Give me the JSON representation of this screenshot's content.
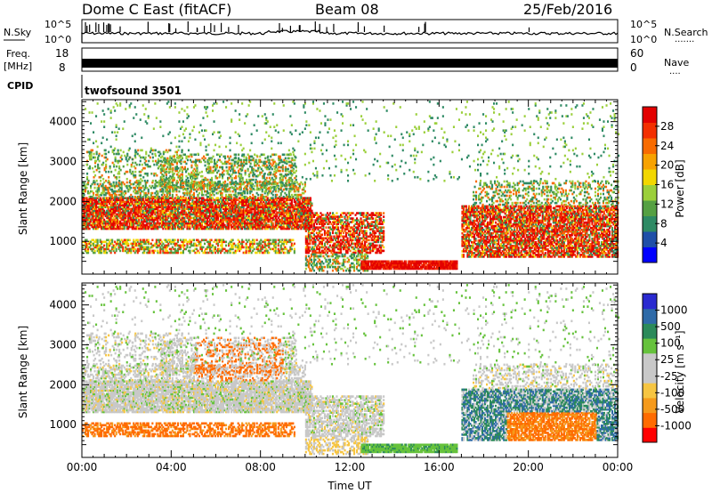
{
  "header": {
    "title": "Dome C East (fitACF)",
    "beam": "Beam 08",
    "date": "25/Feb/2016"
  },
  "panels": {
    "nsky": {
      "label": "N.Sky",
      "left_ticks": [
        "10^5",
        "10^0"
      ],
      "right_ticks": [
        "10^5",
        "10^0"
      ],
      "right_label": "N.Search",
      "right_marker": "·······"
    },
    "freq": {
      "label_line1": "Freq.",
      "label_line2": "[MHz]",
      "left_ticks": [
        "18",
        "8"
      ],
      "right_ticks": [
        "60",
        "0"
      ],
      "right_label": "Nave",
      "right_marker": "····"
    },
    "cpid": {
      "label": "CPID",
      "value": "twofsound 3501"
    }
  },
  "colors": {
    "power_scale": [
      "#0000ff",
      "#1f4fa8",
      "#2e8a64",
      "#55a043",
      "#9bcf3a",
      "#f2d700",
      "#f7a200",
      "#f86b00",
      "#f32f00",
      "#e30000"
    ],
    "velocity_scale": [
      "#ff0000",
      "#ff6b00",
      "#f59a1c",
      "#f6c542",
      "#c8c8c8",
      "#c8c8c8",
      "#66c23c",
      "#2b8a5a",
      "#2e6aa8",
      "#2a2ad0"
    ]
  },
  "chart_data": [
    {
      "type": "heatmap",
      "name": "power",
      "ylabel": "Slant Range [km]",
      "ylim": [
        180,
        4550
      ],
      "xlim": [
        0,
        24
      ],
      "y_ticks": [
        1000,
        2000,
        3000,
        4000
      ],
      "colorbar_label": "Power [dB]",
      "colorbar_ticks": [
        "28",
        "24",
        "20",
        "16",
        "12",
        "8",
        "4"
      ]
    },
    {
      "type": "heatmap",
      "name": "velocity",
      "ylabel": "Slant Range [km]",
      "xlabel": "Time UT",
      "ylim": [
        180,
        4550
      ],
      "xlim": [
        0,
        24
      ],
      "y_ticks": [
        1000,
        2000,
        3000,
        4000
      ],
      "x_tick_labels": [
        "00:00",
        "04:00",
        "08:00",
        "12:00",
        "16:00",
        "20:00",
        "00:00"
      ],
      "colorbar_label": "Velocity [m s⁻¹]",
      "colorbar_ticks": [
        "1000",
        "500",
        "100",
        "25",
        "-25",
        "-100",
        "-500",
        "-1000"
      ]
    }
  ]
}
